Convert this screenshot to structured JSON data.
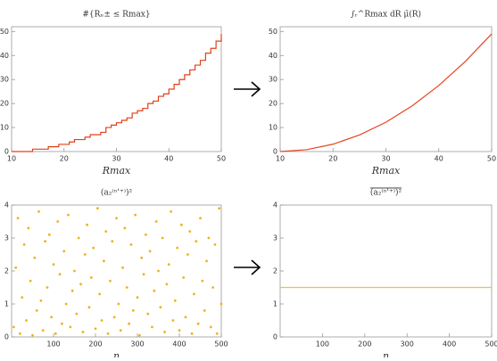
{
  "chart_data": [
    {
      "type": "line",
      "step": true,
      "title": "#{Rₙ± ≤ Rmax}",
      "x_label": "Rmax",
      "color": "#e0401a",
      "x": [
        10,
        14,
        17,
        19,
        21,
        22,
        24,
        25,
        27,
        28,
        29,
        30,
        31,
        32,
        33,
        34,
        35,
        36,
        37,
        38,
        39,
        40,
        41,
        42,
        43,
        44,
        45,
        46,
        47,
        48,
        49,
        50
      ],
      "values": [
        0,
        1,
        2,
        3,
        4,
        5,
        6,
        7,
        8,
        10,
        11,
        12,
        13,
        14,
        16,
        17,
        18,
        20,
        21,
        23,
        24,
        26,
        28,
        30,
        32,
        34,
        36,
        38,
        41,
        43,
        46,
        49
      ],
      "xlim": [
        10,
        50
      ],
      "ylim": [
        0,
        52
      ],
      "xticks": [
        10,
        20,
        30,
        40,
        50
      ],
      "yticks": [
        0,
        10,
        20,
        30,
        40,
        50
      ]
    },
    {
      "type": "line",
      "title": "∫ᵣ^Rmax dR μ̄(R)",
      "x_label": "Rmax",
      "color": "#e8431f",
      "x": [
        10,
        15,
        20,
        25,
        30,
        35,
        40,
        45,
        50
      ],
      "values": [
        0,
        0.77,
        3.06,
        6.9,
        12.2,
        19.1,
        27.5,
        37.5,
        49
      ],
      "xlim": [
        10,
        50
      ],
      "ylim": [
        0,
        52
      ],
      "xticks": [
        10,
        20,
        30,
        40,
        50
      ],
      "yticks": [
        0,
        10,
        20,
        30,
        40,
        50
      ]
    },
    {
      "type": "scatter",
      "title": "(a₂⁽ⁿ'⁺⁾)²",
      "x_label": "n",
      "color": "#f0b21b",
      "x": [
        5,
        10,
        15,
        20,
        25,
        30,
        35,
        40,
        45,
        50,
        55,
        60,
        65,
        70,
        75,
        80,
        85,
        90,
        95,
        100,
        105,
        110,
        115,
        120,
        125,
        130,
        135,
        140,
        145,
        150,
        155,
        160,
        165,
        170,
        175,
        180,
        185,
        190,
        195,
        200,
        205,
        210,
        215,
        220,
        225,
        230,
        235,
        240,
        245,
        250,
        255,
        260,
        265,
        270,
        275,
        280,
        285,
        290,
        295,
        300,
        305,
        310,
        315,
        320,
        325,
        330,
        335,
        340,
        345,
        350,
        355,
        360,
        365,
        370,
        375,
        380,
        385,
        390,
        395,
        400,
        405,
        410,
        415,
        420,
        425,
        430,
        435,
        440,
        445,
        450,
        455,
        460,
        465,
        470,
        475,
        480,
        485,
        490,
        495,
        500
      ],
      "values": [
        0.3,
        2.1,
        3.6,
        0.1,
        1.2,
        2.8,
        0.5,
        3.3,
        1.7,
        0.05,
        2.4,
        0.8,
        3.8,
        1.1,
        0.2,
        2.9,
        1.5,
        3.1,
        0.6,
        2.2,
        0.1,
        3.5,
        1.9,
        0.4,
        2.6,
        1.0,
        3.7,
        0.3,
        1.4,
        2.0,
        0.7,
        3.0,
        1.6,
        0.15,
        2.5,
        3.4,
        0.9,
        1.8,
        2.7,
        0.25,
        3.9,
        1.3,
        0.5,
        2.3,
        3.2,
        0.1,
        1.7,
        2.9,
        0.6,
        3.6,
        1.0,
        0.2,
        2.1,
        3.3,
        1.5,
        0.4,
        2.8,
        0.8,
        3.7,
        1.2,
        0.05,
        2.4,
        1.9,
        3.1,
        0.7,
        2.6,
        0.3,
        1.4,
        3.5,
        2.0,
        0.9,
        3.0,
        0.15,
        1.6,
        2.2,
        3.8,
        0.5,
        1.1,
        2.7,
        0.2,
        3.4,
        1.8,
        0.6,
        2.5,
        3.2,
        0.1,
        1.3,
        2.9,
        0.4,
        3.6,
        1.7,
        0.8,
        2.3,
        3.0,
        0.3,
        1.5,
        2.8,
        0.1,
        3.9,
        1.0
      ],
      "xlim": [
        0,
        500
      ],
      "ylim": [
        0,
        4
      ],
      "xticks": [
        100,
        200,
        300,
        400,
        500
      ],
      "yticks": [
        0,
        1,
        2,
        3,
        4
      ]
    },
    {
      "type": "line",
      "title": "(a₂⁽ⁿ'⁺⁾)²",
      "title_overline": true,
      "x_label": "n",
      "color": "#f0c040",
      "x": [
        0,
        500
      ],
      "values": [
        1.5,
        1.5
      ],
      "xlim": [
        0,
        500
      ],
      "ylim": [
        0,
        4
      ],
      "xticks": [
        100,
        200,
        300,
        400,
        500
      ],
      "yticks": [
        0,
        1,
        2,
        3,
        4
      ]
    }
  ]
}
